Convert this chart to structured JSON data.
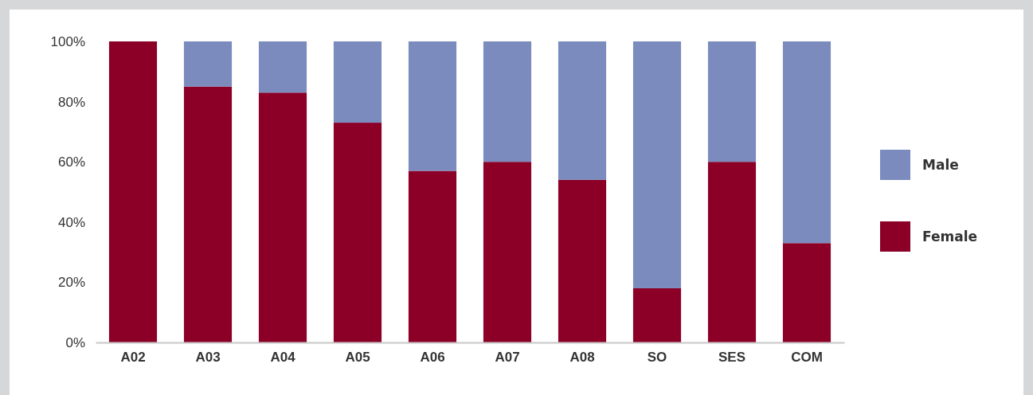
{
  "chart_data": {
    "type": "bar",
    "stacked": true,
    "categories": [
      "A02",
      "A03",
      "A04",
      "A05",
      "A06",
      "A07",
      "A08",
      "SO",
      "SES",
      "COM"
    ],
    "series": [
      {
        "name": "Female",
        "color": "#8c0028",
        "values": [
          100,
          85,
          83,
          73,
          57,
          60,
          54,
          18,
          60,
          33
        ]
      },
      {
        "name": "Male",
        "color": "#7b8bbd",
        "values": [
          0,
          15,
          17,
          27,
          43,
          40,
          46,
          82,
          40,
          67
        ]
      }
    ],
    "ylim": [
      0,
      100
    ],
    "yticks": [
      {
        "value": 0,
        "label": "0%"
      },
      {
        "value": 20,
        "label": "20%"
      },
      {
        "value": 40,
        "label": "40%"
      },
      {
        "value": 60,
        "label": "60%"
      },
      {
        "value": 80,
        "label": "80%"
      },
      {
        "value": 100,
        "label": "100%"
      }
    ],
    "legend": "right"
  }
}
